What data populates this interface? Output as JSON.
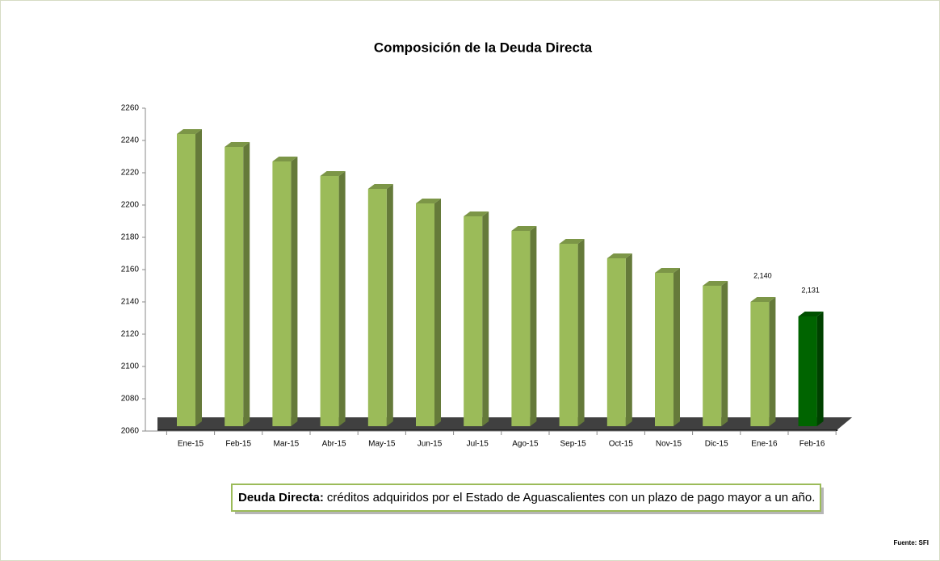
{
  "chart_data": {
    "type": "bar3d",
    "title": "Composición de la Deuda Directa",
    "categories": [
      "Ene-15",
      "Feb-15",
      "Mar-15",
      "Abr-15",
      "May-15",
      "Jun-15",
      "Jul-15",
      "Ago-15",
      "Sep-15",
      "Oct-15",
      "Nov-15",
      "Dic-15",
      "Ene-16",
      "Feb-16"
    ],
    "values": [
      2244,
      2236,
      2227,
      2218,
      2210,
      2201,
      2193,
      2184,
      2176,
      2167,
      2158,
      2150,
      2140,
      2131
    ],
    "value_labels": [
      null,
      null,
      null,
      null,
      null,
      null,
      null,
      null,
      null,
      null,
      null,
      null,
      "2,140",
      "2,131"
    ],
    "colors": [
      "#9bbb59",
      "#9bbb59",
      "#9bbb59",
      "#9bbb59",
      "#9bbb59",
      "#9bbb59",
      "#9bbb59",
      "#9bbb59",
      "#9bbb59",
      "#9bbb59",
      "#9bbb59",
      "#9bbb59",
      "#9bbb59",
      "#006400"
    ],
    "ylim": [
      2060,
      2260
    ],
    "yticks": [
      2060,
      2080,
      2100,
      2120,
      2140,
      2160,
      2180,
      2200,
      2220,
      2240,
      2260
    ],
    "note_label": "Deuda Directa:",
    "note_text": "créditos adquiridos por el Estado de Aguascalientes con un plazo de pago mayor a un año.",
    "source": "Fuente: SFI"
  }
}
